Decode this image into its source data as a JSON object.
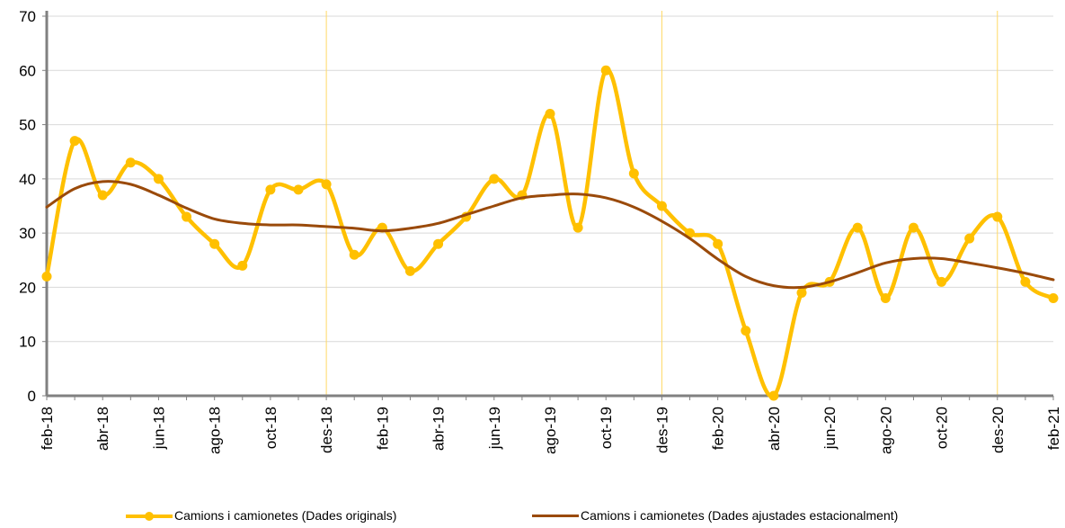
{
  "chart_data": {
    "type": "line",
    "x": [
      "feb-18",
      "mar-18",
      "abr-18",
      "mai-18",
      "jun-18",
      "jul-18",
      "ago-18",
      "set-18",
      "oct-18",
      "nov-18",
      "des-18",
      "gen-19",
      "feb-19",
      "mar-19",
      "abr-19",
      "mai-19",
      "jun-19",
      "jul-19",
      "ago-19",
      "set-19",
      "oct-19",
      "nov-19",
      "des-19",
      "gen-20",
      "feb-20",
      "mar-20",
      "abr-20",
      "mai-20",
      "jun-20",
      "jul-20",
      "ago-20",
      "set-20",
      "oct-20",
      "nov-20",
      "des-20",
      "gen-21",
      "feb-21"
    ],
    "x_tick_labels": [
      "feb-18",
      "abr-18",
      "jun-18",
      "ago-18",
      "oct-18",
      "des-18",
      "feb-19",
      "abr-19",
      "jun-19",
      "ago-19",
      "oct-19",
      "des-19",
      "feb-20",
      "abr-20",
      "jun-20",
      "ago-20",
      "oct-20",
      "des-20",
      "feb-21"
    ],
    "series": [
      {
        "name": "Camions i camionetes (Dades originals)",
        "color": "#FFC000",
        "marker": "circle",
        "values": [
          22,
          47,
          37,
          43,
          40,
          33,
          28,
          24,
          38,
          38,
          39,
          26,
          31,
          23,
          28,
          33,
          40,
          37,
          52,
          31,
          60,
          41,
          35,
          30,
          28,
          12,
          0,
          19,
          21,
          31,
          18,
          31,
          21,
          29,
          33,
          21,
          18
        ]
      },
      {
        "name": "Camions i camionetes (Dades ajustades estacionalment)",
        "color": "#9A4A0A",
        "marker": "none",
        "values": [
          34.8,
          38.2,
          39.5,
          39,
          37,
          34.6,
          32.6,
          31.8,
          31.5,
          31.5,
          31.2,
          30.9,
          30.4,
          30.9,
          31.8,
          33.4,
          35,
          36.5,
          37,
          37.2,
          36.5,
          34.8,
          32.2,
          29,
          25.2,
          22,
          20.3,
          20,
          21,
          22.7,
          24.5,
          25.3,
          25.3,
          24.5,
          23.6,
          22.6,
          21.4
        ]
      }
    ],
    "title": "",
    "xlabel": "",
    "ylabel": "",
    "ylim": [
      0,
      70
    ],
    "yticks": [
      "0",
      "10",
      "20",
      "30",
      "40",
      "50",
      "60",
      "70"
    ],
    "grid": "horizontal",
    "year_markers": [
      "des-18",
      "des-19",
      "des-20"
    ],
    "year_marker_color": "#FFD966",
    "axis_color": "#808080",
    "grid_color": "#D9D9D9",
    "legend_position": "bottom"
  }
}
